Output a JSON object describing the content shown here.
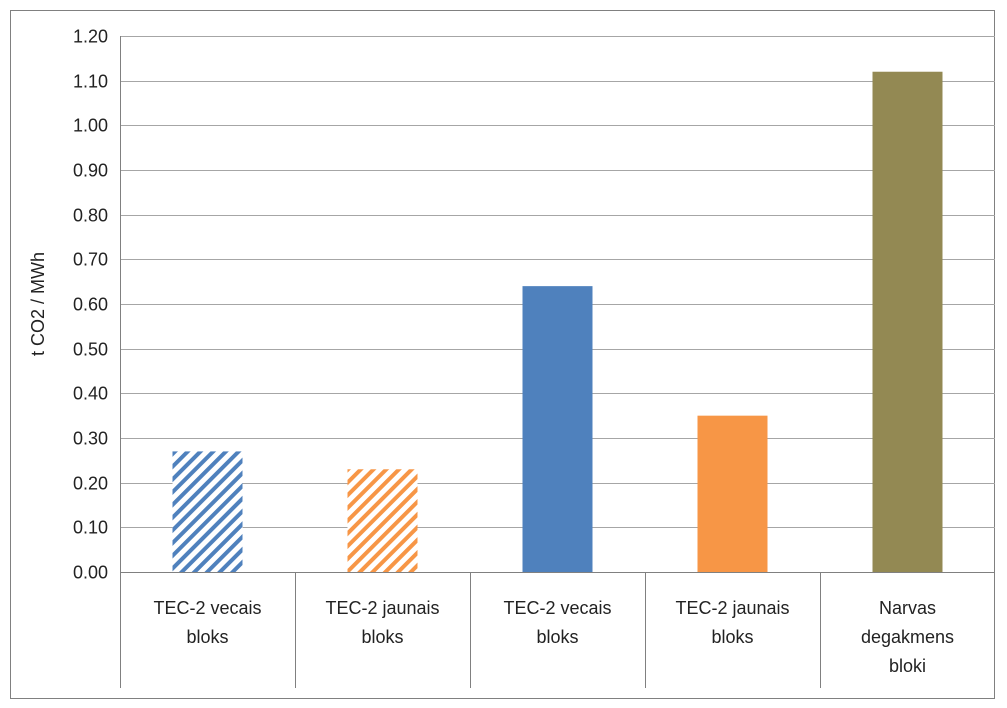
{
  "chart_data": {
    "type": "bar",
    "title": "",
    "xlabel": "",
    "ylabel": "t CO2 / MWh",
    "ylim": [
      0,
      1.2
    ],
    "yticks": [
      "0.00",
      "0.10",
      "0.20",
      "0.30",
      "0.40",
      "0.50",
      "0.60",
      "0.70",
      "0.80",
      "0.90",
      "1.00",
      "1.10",
      "1.20"
    ],
    "grid": true,
    "legend": "none",
    "categories": [
      [
        "TEC-2 vecais",
        "bloks"
      ],
      [
        "TEC-2 jaunais",
        "bloks"
      ],
      [
        "TEC-2 vecais",
        "bloks"
      ],
      [
        "TEC-2 jaunais",
        "bloks"
      ],
      [
        "Narvas",
        "degakmens",
        "bloki"
      ]
    ],
    "values": [
      0.27,
      0.23,
      0.64,
      0.35,
      1.12
    ],
    "bar_styles": [
      "hatched",
      "hatched",
      "solid",
      "solid",
      "solid"
    ],
    "bar_colors": [
      "#4F81BD",
      "#F79646",
      "#4F81BD",
      "#F79646",
      "#938953"
    ],
    "colors": {
      "gridline": "#A6A6A6",
      "axis": "#808080",
      "border": "#808080",
      "text": "#222222"
    }
  }
}
